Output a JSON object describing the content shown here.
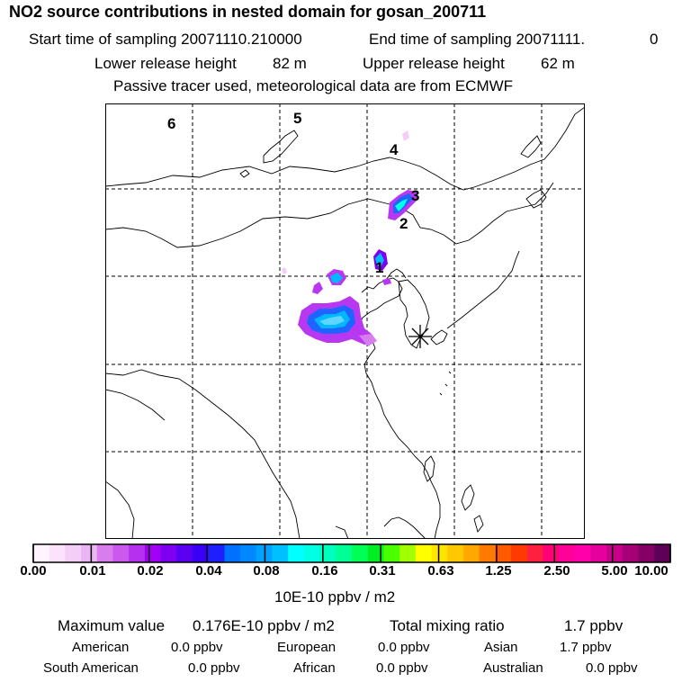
{
  "header": {
    "title": "NO2 source contributions in nested domain for gosan_200711",
    "start_label": "Start time of sampling 20071110.210000",
    "end_label": "End time of sampling 20071111.",
    "end_value": "0",
    "lower_label": "Lower release height",
    "lower_value": "82 m",
    "upper_label": "Upper release height",
    "upper_value": "62 m",
    "note": "Passive tracer used, meteorological data are from ECMWF"
  },
  "map": {
    "region_labels": [
      "6",
      "5",
      "4",
      "3",
      "2",
      "1"
    ],
    "receptor_marker": "asterisk-icon",
    "border_color": "#000000",
    "grid_style": "dashed"
  },
  "colorbar": {
    "tick_labels": [
      "0.00",
      "0.01",
      "0.02",
      "0.04",
      "0.08",
      "0.16",
      "0.31",
      "0.63",
      "1.25",
      "2.50",
      "5.00",
      "10.00"
    ],
    "unit": "10E-10 ppbv / m2",
    "colors": [
      "#fff4ff",
      "#fbe4fb",
      "#f4cef6",
      "#eab6f1",
      "#d77ded",
      "#cc58ee",
      "#b630f0",
      "#a100f4",
      "#7d00f2",
      "#5a00f2",
      "#3a00f5",
      "#1e1eff",
      "#0070ff",
      "#0088ff",
      "#00a3ff",
      "#00c0ff",
      "#00ffff",
      "#00ffe3",
      "#00ffbf",
      "#00ff95",
      "#00ff55",
      "#00ee22",
      "#4cff00",
      "#a0ff00",
      "#ffff00",
      "#ffe400",
      "#ffc800",
      "#ffa800",
      "#ff7a00",
      "#ff5a00",
      "#ff3a00",
      "#ff2040",
      "#ff0077",
      "#ff0099",
      "#ff00aa",
      "#e6009e",
      "#c8008a",
      "#a50077",
      "#840064",
      "#5e0055"
    ]
  },
  "summary": {
    "max_label": "Maximum value",
    "max_value": "0.176E-10 ppbv / m2",
    "total_label": "Total mixing ratio",
    "total_value": "1.7 ppbv",
    "regions": [
      {
        "name": "American",
        "value": "0.0 ppbv"
      },
      {
        "name": "European",
        "value": "0.0 ppbv"
      },
      {
        "name": "Asian",
        "value": "1.7 ppbv"
      },
      {
        "name": "South American",
        "value": "0.0 ppbv"
      },
      {
        "name": "African",
        "value": "0.0 ppbv"
      },
      {
        "name": "Australian",
        "value": "0.0 ppbv"
      }
    ]
  }
}
